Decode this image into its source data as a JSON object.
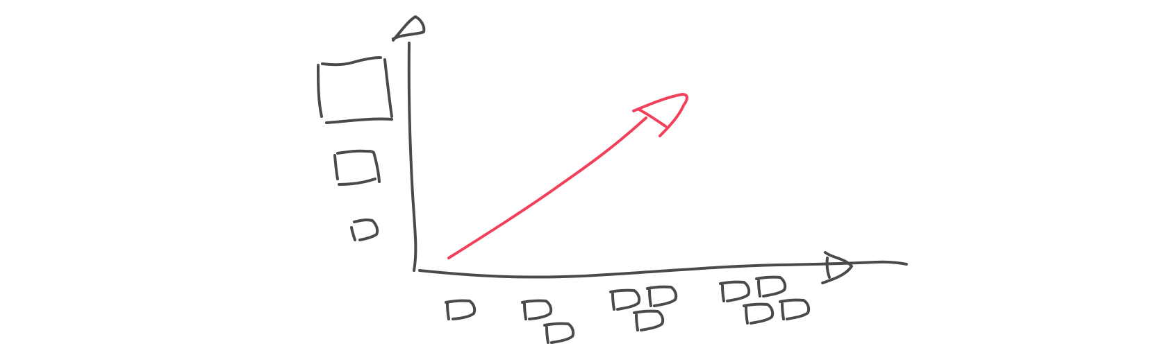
{
  "colors": {
    "background": "#ffffff",
    "ink": "#4a4a4a",
    "accent": "#f2405a"
  },
  "diagram": {
    "style": "hand-drawn sketch",
    "axes": {
      "x_axis": {
        "arrowhead": "right"
      },
      "y_axis": {
        "arrowhead": "up"
      }
    },
    "y_axis_markers": {
      "shape": "open square",
      "count": 3,
      "sizes": [
        "large",
        "medium",
        "small"
      ]
    },
    "x_axis_markers": {
      "shape": "D-shaped box",
      "groups": [
        {
          "count": 1
        },
        {
          "count": 2
        },
        {
          "count": 3
        },
        {
          "count": 4
        }
      ]
    },
    "trend_arrow": {
      "color": "#f2405a",
      "direction": "up-right"
    }
  }
}
